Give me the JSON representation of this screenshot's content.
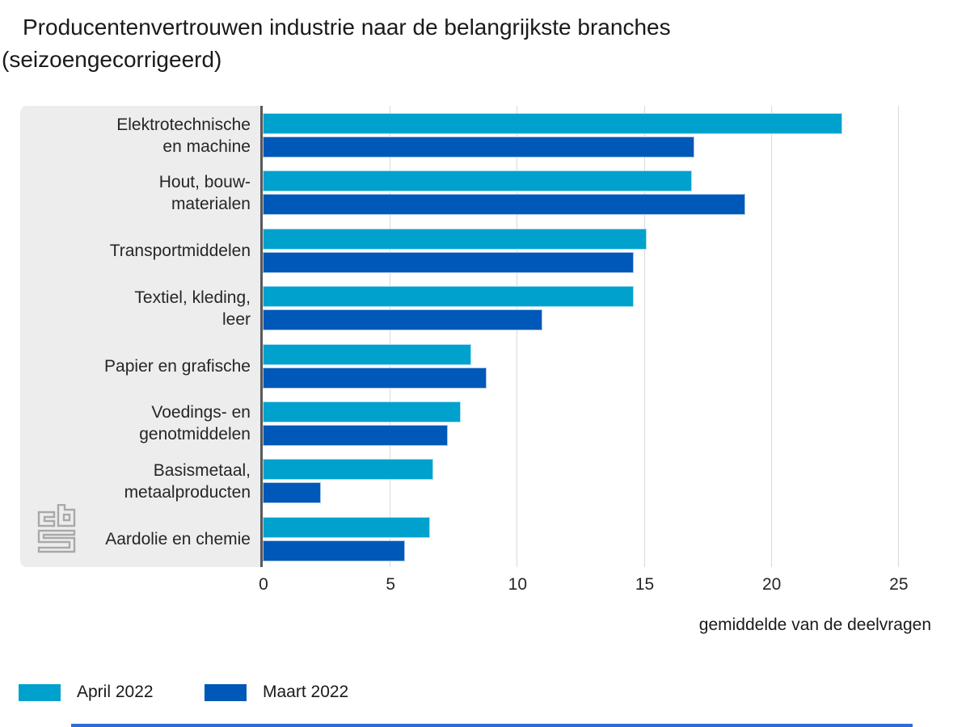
{
  "title": "Producentenvertrouwen industrie naar de belangrijkste branches (seizoengecorrigeerd)",
  "chart_data": {
    "type": "bar",
    "orientation": "horizontal",
    "title": "Producentenvertrouwen industrie naar de belangrijkste branches (seizoengecorrigeerd)",
    "categories": [
      "Elektrotechnische\nen machine",
      "Hout, bouw-\nmaterialen",
      "Transportmiddelen",
      "Textiel, kleding,\nleer",
      "Papier en grafische",
      "Voedings- en\ngenotmiddelen",
      "Basismetaal,\nmetaalproducten",
      "Aardolie en chemie"
    ],
    "series": [
      {
        "name": "April 2022",
        "color": "#00a1cd",
        "values": [
          22.8,
          16.9,
          15.1,
          14.6,
          8.2,
          7.8,
          6.7,
          6.6
        ]
      },
      {
        "name": "Maart 2022",
        "color": "#0058b8",
        "values": [
          17.0,
          19.0,
          14.6,
          11.0,
          8.8,
          7.3,
          2.3,
          5.6
        ]
      }
    ],
    "xlabel": "gemiddelde van de deelvragen",
    "xticks": [
      0,
      5,
      10,
      15,
      20,
      25
    ],
    "xlim": [
      0,
      27.2
    ],
    "grid": true,
    "legend_position": "bottom-left"
  },
  "branding": {
    "logo": "cbs",
    "logo_color": "#a9a9a9"
  },
  "colors": {
    "april": "#00a1cd",
    "maart": "#0058b8",
    "panel": "#ededed",
    "axis_line": "#58595b",
    "gridline": "#d9d9d9",
    "footer_bar": "#2e6bd6"
  }
}
